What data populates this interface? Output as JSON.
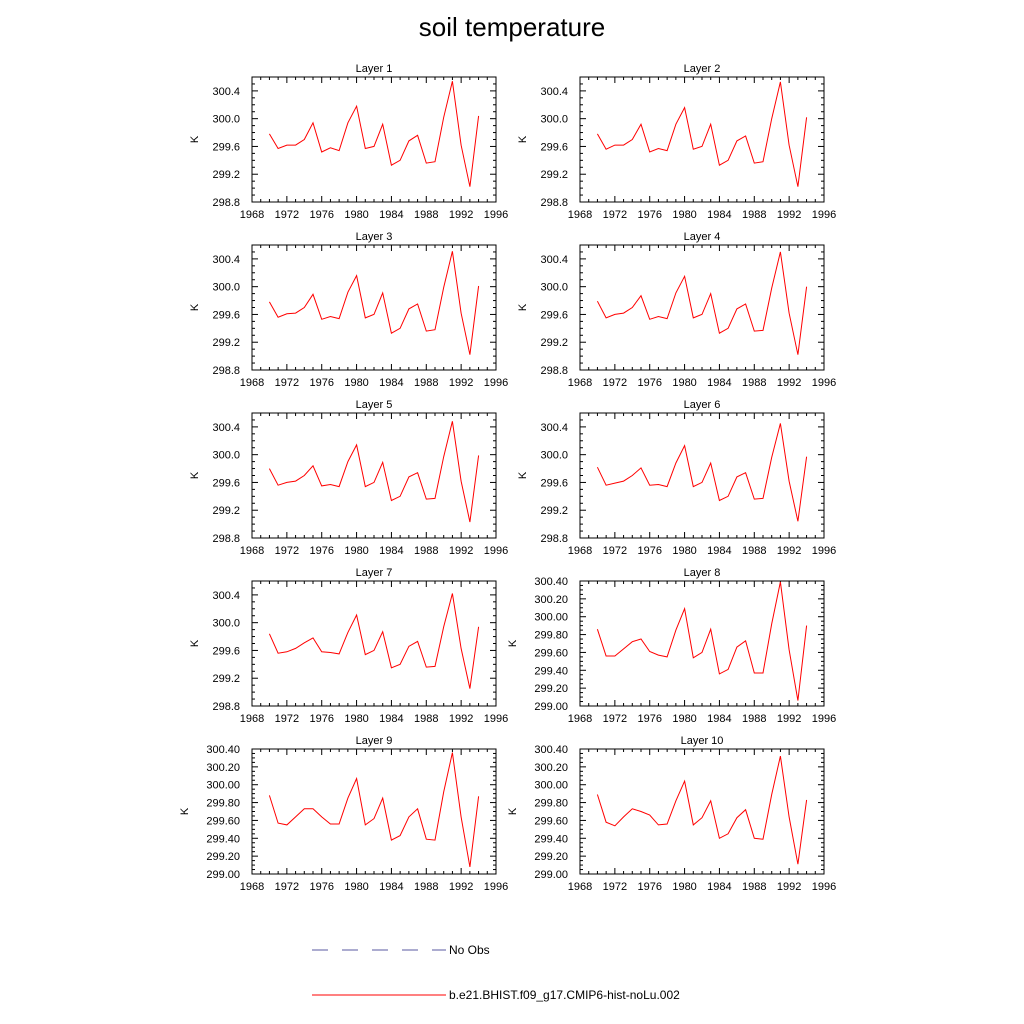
{
  "figure_title": "soil temperature",
  "legend": {
    "items": [
      {
        "label": "No Obs",
        "color": "#5a5aa0",
        "style": "dashed"
      },
      {
        "label": "b.e21.BHIST.f09_g17.CMIP6-hist-noLu.002",
        "color": "#ff0000",
        "style": "solid"
      }
    ]
  },
  "colors": {
    "series": "#ff0000",
    "obs": "#5a5aa0"
  },
  "chart_data": [
    {
      "type": "line",
      "title": "Layer 1",
      "ylabel": "K",
      "xlim": [
        1968,
        1996
      ],
      "ylim": [
        298.8,
        300.6
      ],
      "xticks": [
        "1968",
        "1972",
        "1976",
        "1980",
        "1984",
        "1988",
        "1992",
        "1996"
      ],
      "yticks": [
        "298.8",
        "299.2",
        "299.6",
        "300.0",
        "300.4"
      ],
      "x": [
        1970,
        1971,
        1972,
        1973,
        1974,
        1975,
        1976,
        1977,
        1978,
        1979,
        1980,
        1981,
        1982,
        1983,
        1984,
        1985,
        1986,
        1987,
        1988,
        1989,
        1990,
        1991,
        1992,
        1993,
        1994
      ],
      "series": [
        {
          "name": "b.e21.BHIST.f09_g17.CMIP6-hist-noLu.002",
          "values": [
            299.78,
            299.57,
            299.62,
            299.62,
            299.7,
            299.94,
            299.52,
            299.58,
            299.54,
            299.94,
            300.18,
            299.57,
            299.6,
            299.92,
            299.33,
            299.4,
            299.68,
            299.76,
            299.36,
            299.38,
            300.02,
            300.54,
            299.62,
            299.02,
            300.04
          ]
        }
      ]
    },
    {
      "type": "line",
      "title": "Layer 2",
      "ylabel": "K",
      "xlim": [
        1968,
        1996
      ],
      "ylim": [
        298.8,
        300.6
      ],
      "xticks": [
        "1968",
        "1972",
        "1976",
        "1980",
        "1984",
        "1988",
        "1992",
        "1996"
      ],
      "yticks": [
        "298.8",
        "299.2",
        "299.6",
        "300.0",
        "300.4"
      ],
      "x": [
        1970,
        1971,
        1972,
        1973,
        1974,
        1975,
        1976,
        1977,
        1978,
        1979,
        1980,
        1981,
        1982,
        1983,
        1984,
        1985,
        1986,
        1987,
        1988,
        1989,
        1990,
        1991,
        1992,
        1993,
        1994
      ],
      "series": [
        {
          "name": "b.e21.BHIST.f09_g17.CMIP6-hist-noLu.002",
          "values": [
            299.78,
            299.56,
            299.62,
            299.62,
            299.7,
            299.92,
            299.52,
            299.57,
            299.54,
            299.92,
            300.16,
            299.56,
            299.6,
            299.92,
            299.33,
            299.4,
            299.68,
            299.75,
            299.36,
            299.38,
            300.0,
            300.53,
            299.62,
            299.02,
            300.02
          ]
        }
      ]
    },
    {
      "type": "line",
      "title": "Layer 3",
      "ylabel": "K",
      "xlim": [
        1968,
        1996
      ],
      "ylim": [
        298.8,
        300.6
      ],
      "xticks": [
        "1968",
        "1972",
        "1976",
        "1980",
        "1984",
        "1988",
        "1992",
        "1996"
      ],
      "yticks": [
        "298.8",
        "299.2",
        "299.6",
        "300.0",
        "300.4"
      ],
      "x": [
        1970,
        1971,
        1972,
        1973,
        1974,
        1975,
        1976,
        1977,
        1978,
        1979,
        1980,
        1981,
        1982,
        1983,
        1984,
        1985,
        1986,
        1987,
        1988,
        1989,
        1990,
        1991,
        1992,
        1993,
        1994
      ],
      "series": [
        {
          "name": "b.e21.BHIST.f09_g17.CMIP6-hist-noLu.002",
          "values": [
            299.78,
            299.56,
            299.61,
            299.62,
            299.7,
            299.89,
            299.53,
            299.57,
            299.54,
            299.92,
            300.16,
            299.55,
            299.6,
            299.91,
            299.33,
            299.4,
            299.68,
            299.75,
            299.36,
            299.38,
            299.99,
            300.51,
            299.62,
            299.02,
            300.01
          ]
        }
      ]
    },
    {
      "type": "line",
      "title": "Layer 4",
      "ylabel": "K",
      "xlim": [
        1968,
        1996
      ],
      "ylim": [
        298.8,
        300.6
      ],
      "xticks": [
        "1968",
        "1972",
        "1976",
        "1980",
        "1984",
        "1988",
        "1992",
        "1996"
      ],
      "yticks": [
        "298.8",
        "299.2",
        "299.6",
        "300.0",
        "300.4"
      ],
      "x": [
        1970,
        1971,
        1972,
        1973,
        1974,
        1975,
        1976,
        1977,
        1978,
        1979,
        1980,
        1981,
        1982,
        1983,
        1984,
        1985,
        1986,
        1987,
        1988,
        1989,
        1990,
        1991,
        1992,
        1993,
        1994
      ],
      "series": [
        {
          "name": "b.e21.BHIST.f09_g17.CMIP6-hist-noLu.002",
          "values": [
            299.79,
            299.55,
            299.6,
            299.62,
            299.7,
            299.87,
            299.53,
            299.57,
            299.54,
            299.91,
            300.15,
            299.55,
            299.6,
            299.9,
            299.33,
            299.4,
            299.68,
            299.75,
            299.36,
            299.37,
            299.98,
            300.5,
            299.62,
            299.02,
            300.0
          ]
        }
      ]
    },
    {
      "type": "line",
      "title": "Layer 5",
      "ylabel": "K",
      "xlim": [
        1968,
        1996
      ],
      "ylim": [
        298.8,
        300.6
      ],
      "xticks": [
        "1968",
        "1972",
        "1976",
        "1980",
        "1984",
        "1988",
        "1992",
        "1996"
      ],
      "yticks": [
        "298.8",
        "299.2",
        "299.6",
        "300.0",
        "300.4"
      ],
      "x": [
        1970,
        1971,
        1972,
        1973,
        1974,
        1975,
        1976,
        1977,
        1978,
        1979,
        1980,
        1981,
        1982,
        1983,
        1984,
        1985,
        1986,
        1987,
        1988,
        1989,
        1990,
        1991,
        1992,
        1993,
        1994
      ],
      "series": [
        {
          "name": "b.e21.BHIST.f09_g17.CMIP6-hist-noLu.002",
          "values": [
            299.8,
            299.56,
            299.6,
            299.62,
            299.7,
            299.84,
            299.55,
            299.57,
            299.54,
            299.9,
            300.14,
            299.54,
            299.6,
            299.89,
            299.34,
            299.4,
            299.68,
            299.74,
            299.36,
            299.37,
            299.97,
            300.48,
            299.62,
            299.03,
            299.99
          ]
        }
      ]
    },
    {
      "type": "line",
      "title": "Layer 6",
      "ylabel": "K",
      "xlim": [
        1968,
        1996
      ],
      "ylim": [
        298.8,
        300.6
      ],
      "xticks": [
        "1968",
        "1972",
        "1976",
        "1980",
        "1984",
        "1988",
        "1992",
        "1996"
      ],
      "yticks": [
        "298.8",
        "299.2",
        "299.6",
        "300.0",
        "300.4"
      ],
      "x": [
        1970,
        1971,
        1972,
        1973,
        1974,
        1975,
        1976,
        1977,
        1978,
        1979,
        1980,
        1981,
        1982,
        1983,
        1984,
        1985,
        1986,
        1987,
        1988,
        1989,
        1990,
        1991,
        1992,
        1993,
        1994
      ],
      "series": [
        {
          "name": "b.e21.BHIST.f09_g17.CMIP6-hist-noLu.002",
          "values": [
            299.82,
            299.56,
            299.59,
            299.62,
            299.7,
            299.81,
            299.56,
            299.57,
            299.54,
            299.88,
            300.13,
            299.54,
            299.6,
            299.88,
            299.34,
            299.4,
            299.68,
            299.74,
            299.36,
            299.37,
            299.96,
            300.45,
            299.62,
            299.04,
            299.97
          ]
        }
      ]
    },
    {
      "type": "line",
      "title": "Layer 7",
      "ylabel": "K",
      "xlim": [
        1968,
        1996
      ],
      "ylim": [
        298.8,
        300.6
      ],
      "xticks": [
        "1968",
        "1972",
        "1976",
        "1980",
        "1984",
        "1988",
        "1992",
        "1996"
      ],
      "yticks": [
        "298.8",
        "299.2",
        "299.6",
        "300.0",
        "300.4"
      ],
      "x": [
        1970,
        1971,
        1972,
        1973,
        1974,
        1975,
        1976,
        1977,
        1978,
        1979,
        1980,
        1981,
        1982,
        1983,
        1984,
        1985,
        1986,
        1987,
        1988,
        1989,
        1990,
        1991,
        1992,
        1993,
        1994
      ],
      "series": [
        {
          "name": "b.e21.BHIST.f09_g17.CMIP6-hist-noLu.002",
          "values": [
            299.84,
            299.56,
            299.58,
            299.63,
            299.71,
            299.78,
            299.58,
            299.57,
            299.55,
            299.86,
            300.11,
            299.54,
            299.6,
            299.87,
            299.35,
            299.4,
            299.66,
            299.73,
            299.36,
            299.37,
            299.94,
            300.42,
            299.63,
            299.05,
            299.94
          ]
        }
      ]
    },
    {
      "type": "line",
      "title": "Layer 8",
      "ylabel": "K",
      "xlim": [
        1968,
        1996
      ],
      "ylim": [
        299.0,
        300.4
      ],
      "xticks": [
        "1968",
        "1972",
        "1976",
        "1980",
        "1984",
        "1988",
        "1992",
        "1996"
      ],
      "yticks": [
        "299.00",
        "299.20",
        "299.40",
        "299.60",
        "299.80",
        "300.00",
        "300.20",
        "300.40"
      ],
      "x": [
        1970,
        1971,
        1972,
        1973,
        1974,
        1975,
        1976,
        1977,
        1978,
        1979,
        1980,
        1981,
        1982,
        1983,
        1984,
        1985,
        1986,
        1987,
        1988,
        1989,
        1990,
        1991,
        1992,
        1993,
        1994
      ],
      "series": [
        {
          "name": "b.e21.BHIST.f09_g17.CMIP6-hist-noLu.002",
          "values": [
            299.86,
            299.56,
            299.56,
            299.64,
            299.72,
            299.75,
            299.61,
            299.57,
            299.55,
            299.85,
            300.09,
            299.54,
            299.6,
            299.86,
            299.36,
            299.41,
            299.66,
            299.73,
            299.37,
            299.37,
            299.92,
            300.39,
            299.63,
            299.06,
            299.9
          ]
        }
      ]
    },
    {
      "type": "line",
      "title": "Layer 9",
      "ylabel": "K",
      "xlim": [
        1968,
        1996
      ],
      "ylim": [
        299.0,
        300.4
      ],
      "xticks": [
        "1968",
        "1972",
        "1976",
        "1980",
        "1984",
        "1988",
        "1992",
        "1996"
      ],
      "yticks": [
        "299.00",
        "299.20",
        "299.40",
        "299.60",
        "299.80",
        "300.00",
        "300.20",
        "300.40"
      ],
      "x": [
        1970,
        1971,
        1972,
        1973,
        1974,
        1975,
        1976,
        1977,
        1978,
        1979,
        1980,
        1981,
        1982,
        1983,
        1984,
        1985,
        1986,
        1987,
        1988,
        1989,
        1990,
        1991,
        1992,
        1993,
        1994
      ],
      "series": [
        {
          "name": "b.e21.BHIST.f09_g17.CMIP6-hist-noLu.002",
          "values": [
            299.88,
            299.57,
            299.55,
            299.64,
            299.73,
            299.73,
            299.64,
            299.56,
            299.56,
            299.85,
            300.07,
            299.55,
            299.62,
            299.85,
            299.38,
            299.43,
            299.64,
            299.73,
            299.39,
            299.38,
            299.92,
            300.36,
            299.64,
            299.08,
            299.87
          ]
        }
      ]
    },
    {
      "type": "line",
      "title": "Layer 10",
      "ylabel": "K",
      "xlim": [
        1968,
        1996
      ],
      "ylim": [
        299.0,
        300.4
      ],
      "xticks": [
        "1968",
        "1972",
        "1976",
        "1980",
        "1984",
        "1988",
        "1992",
        "1996"
      ],
      "yticks": [
        "299.00",
        "299.20",
        "299.40",
        "299.60",
        "299.80",
        "300.00",
        "300.20",
        "300.40"
      ],
      "x": [
        1970,
        1971,
        1972,
        1973,
        1974,
        1975,
        1976,
        1977,
        1978,
        1979,
        1980,
        1981,
        1982,
        1983,
        1984,
        1985,
        1986,
        1987,
        1988,
        1989,
        1990,
        1991,
        1992,
        1993,
        1994
      ],
      "series": [
        {
          "name": "b.e21.BHIST.f09_g17.CMIP6-hist-noLu.002",
          "values": [
            299.89,
            299.58,
            299.54,
            299.64,
            299.73,
            299.7,
            299.66,
            299.55,
            299.56,
            299.82,
            300.04,
            299.55,
            299.63,
            299.82,
            299.4,
            299.45,
            299.63,
            299.72,
            299.4,
            299.39,
            299.89,
            300.32,
            299.64,
            299.11,
            299.83
          ]
        }
      ]
    }
  ]
}
